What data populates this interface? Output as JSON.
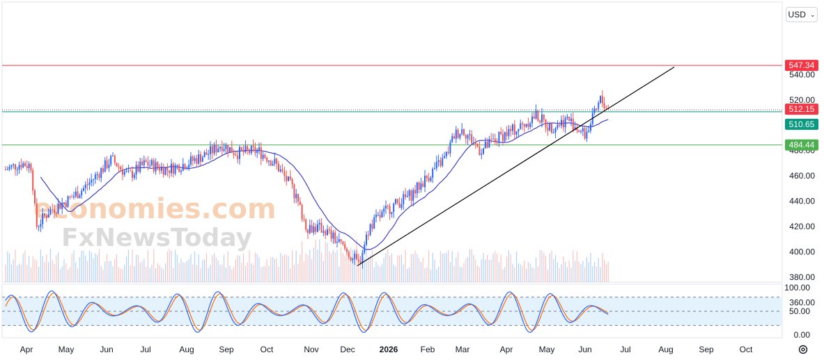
{
  "currency": {
    "label": "USD",
    "icon": "chevron-down-icon"
  },
  "settings": {
    "icon": "gear-icon"
  },
  "watermark": {
    "line1": "economies.com",
    "line2": "FxNewsToday"
  },
  "colors": {
    "up": "#2962ff",
    "down": "#ef5350",
    "ma": "#3f3fc8",
    "resistance": "#f23645",
    "support": "#4caf50",
    "trendline": "#000000",
    "stoch_k": "#2962ff",
    "stoch_d": "#ff6d00",
    "stoch_band": "#e3f2fd"
  },
  "chart_data": [
    {
      "type": "candlestick",
      "title": "",
      "y_axis": {
        "ticks": [
          "540.00",
          "520.00",
          "500.00",
          "480.00",
          "460.00",
          "440.00",
          "420.00",
          "400.00",
          "380.00",
          "360.00"
        ],
        "range": [
          355,
          555
        ],
        "position": "right"
      },
      "x_axis": {
        "labels": [
          "Apr",
          "May",
          "Jun",
          "Jul",
          "Aug",
          "Sep",
          "Oct",
          "Nov",
          "Dec",
          "2026",
          "Feb",
          "Mar",
          "Apr",
          "May",
          "Jun",
          "Jul",
          "Aug",
          "Sep",
          "Oct"
        ]
      },
      "price_tags": [
        {
          "label": "547.34",
          "value": 547.34,
          "color": "#f23645",
          "line": "solid"
        },
        {
          "label": "512.15",
          "value": 512.15,
          "color": "#f23645",
          "line": "dotted"
        },
        {
          "label": "510.65",
          "value": 510.65,
          "color": "#089981",
          "line": "solid"
        },
        {
          "label": "484.44",
          "value": 484.44,
          "color": "#4caf50",
          "line": "solid"
        }
      ],
      "close_series_monthly": [
        {
          "x": "Apr",
          "y": 463
        },
        {
          "x": "May",
          "y": 462
        },
        {
          "x": "Jun",
          "y": 470
        },
        {
          "x": "Jul",
          "y": 469
        },
        {
          "x": "Aug",
          "y": 471
        },
        {
          "x": "Sep",
          "y": 480
        },
        {
          "x": "Oct",
          "y": 470
        },
        {
          "x": "Nov",
          "y": 412
        },
        {
          "x": "Dec",
          "y": 416
        },
        {
          "x": "2026",
          "y": 450
        },
        {
          "x": "Feb",
          "y": 492
        },
        {
          "x": "Mar",
          "y": 494
        },
        {
          "x": "Apr",
          "y": 502
        },
        {
          "x": "May",
          "y": 502
        },
        {
          "x": "Jun",
          "y": 512
        }
      ],
      "moving_average": "single MA line",
      "trendline": {
        "from": {
          "x": "Dec",
          "y": 389
        },
        "to": {
          "x": "Jul",
          "y": 527
        }
      },
      "volume_bars": true,
      "grid": false
    },
    {
      "type": "line",
      "title": "",
      "y_axis": {
        "ticks": [
          "100.00",
          "50.00",
          "0.00"
        ],
        "range": [
          0,
          100
        ],
        "position": "right"
      },
      "levels": [
        80,
        50,
        20
      ],
      "series": [
        {
          "name": "",
          "kind": "%K"
        },
        {
          "name": "",
          "kind": "%D"
        }
      ]
    }
  ]
}
